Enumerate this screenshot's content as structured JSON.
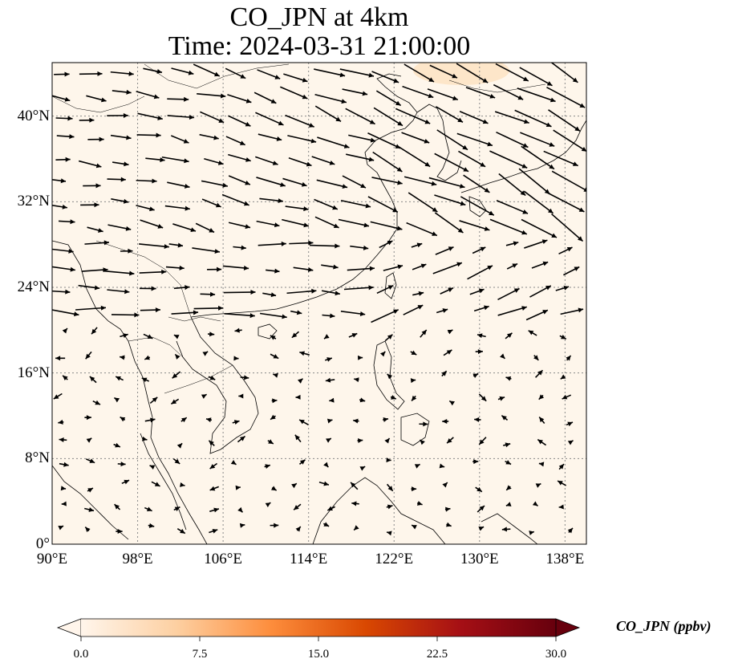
{
  "title": {
    "line1": "CO_JPN at 4km",
    "line2": "Time: 2024-03-31 21:00:00"
  },
  "map": {
    "lon_range": [
      90,
      140
    ],
    "lat_range": [
      0,
      45
    ],
    "gridlines": true,
    "background_color": "#fef6eb",
    "x_ticks": [
      {
        "value": 90,
        "label": "90°E"
      },
      {
        "value": 98,
        "label": "98°E"
      },
      {
        "value": 106,
        "label": "106°E"
      },
      {
        "value": 114,
        "label": "114°E"
      },
      {
        "value": 122,
        "label": "122°E"
      },
      {
        "value": 130,
        "label": "130°E"
      },
      {
        "value": 138,
        "label": "138°E"
      }
    ],
    "y_ticks": [
      {
        "value": 40,
        "label": "40°N"
      },
      {
        "value": 32,
        "label": "32°N"
      },
      {
        "value": 24,
        "label": "24°N"
      },
      {
        "value": 16,
        "label": "16°N"
      },
      {
        "value": 8,
        "label": "8°N"
      },
      {
        "value": 0,
        "label": "0°"
      }
    ]
  },
  "colorbar": {
    "label": "CO_JPN (ppbv)",
    "min": 0,
    "max": 30,
    "extend": "both",
    "colors": [
      "#fff5eb",
      "#fdd0a2",
      "#fd8d3c",
      "#d94801",
      "#a50f15",
      "#67000d"
    ],
    "ticks": [
      {
        "value": 0,
        "label": "0.0"
      },
      {
        "value": 7.5,
        "label": "7.5"
      },
      {
        "value": 15,
        "label": "15.0"
      },
      {
        "value": 22.5,
        "label": "22.5"
      },
      {
        "value": 30,
        "label": "30.0"
      }
    ]
  }
}
